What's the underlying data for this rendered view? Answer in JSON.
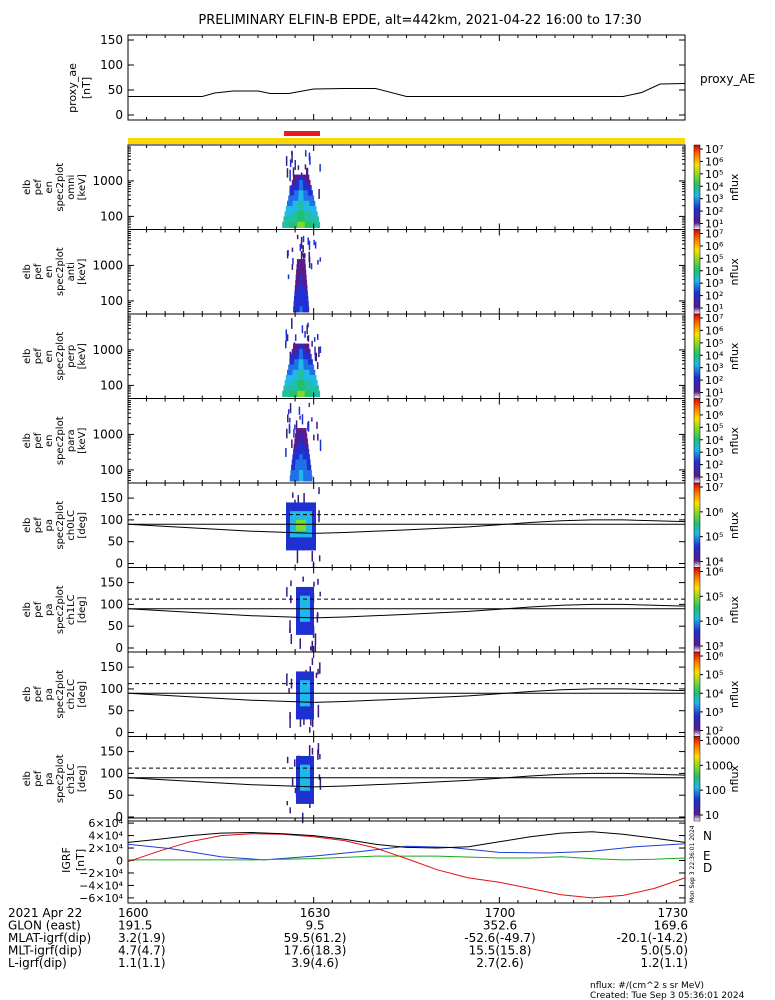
{
  "title": "PRELIMINARY ELFIN-B EPDE, alt=442km, 2021-04-22 16:00 to 17:30",
  "time_ticks": [
    "1600",
    "1630",
    "1700",
    "1730"
  ],
  "colors": {
    "bar_yellow": "#ffd700",
    "bar_red": "#e61c1c",
    "N": "#1f3bd6",
    "E": "#1aa81a",
    "D": "#e01010"
  },
  "footer": {
    "rows": [
      {
        "label": "2021 Apr 22",
        "values": [
          "1600",
          "1630",
          "1700",
          "1730"
        ]
      },
      {
        "label": "GLON (east)",
        "values": [
          "191.5",
          "9.5",
          "352.6",
          "169.6"
        ]
      },
      {
        "label": "MLAT-igrf(dip)",
        "values": [
          "3.2(1.9)",
          "59.5(61.2)",
          "-52.6(-49.7)",
          "-20.1(-14.2)"
        ]
      },
      {
        "label": "MLT-igrf(dip)",
        "values": [
          "4.7(4.7)",
          "17.6(18.3)",
          "15.5(15.8)",
          "5.0(5.0)"
        ]
      },
      {
        "label": "L-igrf(dip)",
        "values": [
          "1.1(1.1)",
          "3.9(4.6)",
          "2.7(2.6)",
          "1.2(1.1)"
        ]
      }
    ],
    "units_note": "nflux: #/(cm^2 s sr MeV)",
    "created": "Created: Tue Sep  3 05:36:01 2024",
    "vertical_stamp": "Mon Sep  3 22:36:01 2024"
  },
  "chart_data": [
    {
      "type": "line",
      "panel": "proxy_ae",
      "ylabel": [
        "proxy_ae",
        "[nT]"
      ],
      "ylim": [
        0,
        150
      ],
      "yticks": [
        "0",
        "50",
        "100",
        "150"
      ],
      "series": [
        {
          "name": "proxy_AE",
          "x_minutes": [
            0,
            5,
            12,
            14,
            17,
            21,
            23,
            26,
            30,
            35,
            40,
            45,
            60,
            75,
            80,
            83,
            86,
            90
          ],
          "values": [
            37,
            37,
            37,
            44,
            48,
            48,
            43,
            43,
            52,
            53,
            53,
            37,
            37,
            37,
            37,
            45,
            62,
            63
          ]
        }
      ]
    },
    {
      "type": "heatmap",
      "panel": "energy_spectra",
      "panels": [
        {
          "ylabel": [
            "elb",
            "pef",
            "en",
            "spec2plot",
            "omni",
            "[keV]"
          ],
          "yticks": [
            "100",
            "1000"
          ],
          "cbar_ticks": [
            "10¹",
            "10²",
            "10³",
            "10⁴",
            "10⁵",
            "10⁶",
            "10⁷"
          ],
          "cbar_label": "nflux"
        },
        {
          "ylabel": [
            "elb",
            "pef",
            "en",
            "spec2plot",
            "anti",
            "[keV]"
          ],
          "yticks": [
            "100",
            "1000"
          ],
          "cbar_ticks": [
            "10¹",
            "10²",
            "10³",
            "10⁴",
            "10⁵",
            "10⁶",
            "10⁷"
          ],
          "cbar_label": "nflux"
        },
        {
          "ylabel": [
            "elb",
            "pef",
            "en",
            "spec2plot",
            "perp",
            "[keV]"
          ],
          "yticks": [
            "100",
            "1000"
          ],
          "cbar_ticks": [
            "10¹",
            "10²",
            "10³",
            "10⁴",
            "10⁵",
            "10⁶",
            "10⁷"
          ],
          "cbar_label": "nflux"
        },
        {
          "ylabel": [
            "elb",
            "pef",
            "en",
            "spec2plot",
            "para",
            "[keV]"
          ],
          "yticks": [
            "100",
            "1000"
          ],
          "cbar_ticks": [
            "10¹",
            "10²",
            "10³",
            "10⁴",
            "10⁵",
            "10⁶",
            "10⁷"
          ],
          "cbar_label": "nflux"
        }
      ]
    },
    {
      "type": "heatmap",
      "panel": "pitch_angle_spectra",
      "ylim": [
        0,
        180
      ],
      "yticks": [
        "0",
        "50",
        "100",
        "150"
      ],
      "dashed_line_deg": 112,
      "panels": [
        {
          "ylabel": [
            "elb",
            "pef",
            "pa",
            "spec2plot",
            "ch0LC",
            "[deg]"
          ],
          "cbar_ticks": [
            "10⁴",
            "10⁵",
            "10⁶",
            "10⁷"
          ],
          "cbar_label": "nflux"
        },
        {
          "ylabel": [
            "elb",
            "pef",
            "pa",
            "spec2plot",
            "ch1LC",
            "[deg]"
          ],
          "cbar_ticks": [
            "10³",
            "10⁴",
            "10⁵",
            "10⁶"
          ],
          "cbar_label": "nflux"
        },
        {
          "ylabel": [
            "elb",
            "pef",
            "pa",
            "spec2plot",
            "ch2LC",
            "[deg]"
          ],
          "cbar_ticks": [
            "10²",
            "10³",
            "10⁴",
            "10⁵",
            "10⁶"
          ],
          "cbar_label": "nflux"
        },
        {
          "ylabel": [
            "elb",
            "pef",
            "pa",
            "spec2plot",
            "ch3LC",
            "[deg]"
          ],
          "cbar_ticks": [
            "10",
            "100",
            "1000",
            "10000"
          ],
          "cbar_label": "nflux"
        }
      ],
      "loss_cone_curve": {
        "x_minutes": [
          0,
          10,
          20,
          30,
          35,
          45,
          55,
          60,
          65,
          70,
          75,
          80,
          85,
          90
        ],
        "values": [
          90,
          82,
          74,
          69,
          71,
          77,
          84,
          89,
          94,
          98,
          100,
          100,
          98,
          96
        ]
      }
    },
    {
      "type": "line",
      "panel": "igrf_field",
      "ylabel": [
        "IGRF",
        "[nT]"
      ],
      "ylim": [
        -65000,
        65000
      ],
      "yticks": [
        "6×10⁴",
        "4×10⁴",
        "2×10⁴",
        "0",
        "−2×10⁴",
        "−4×10⁴",
        "−6×10⁴"
      ],
      "series": [
        {
          "name": "N",
          "x_minutes": [
            0,
            7,
            15,
            22,
            30,
            38,
            45,
            52,
            60,
            68,
            75,
            82,
            90
          ],
          "values": [
            26000,
            19000,
            6000,
            1000,
            7000,
            15000,
            23000,
            21000,
            13000,
            12000,
            15000,
            22000,
            27000
          ]
        },
        {
          "name": "E",
          "x_minutes": [
            0,
            10,
            20,
            30,
            40,
            50,
            60,
            65,
            70,
            75,
            80,
            85,
            90
          ],
          "values": [
            1000,
            1000,
            1000,
            3000,
            7000,
            7000,
            4000,
            4000,
            6000,
            3000,
            1000,
            2000,
            4000
          ]
        },
        {
          "name": "D",
          "x_minutes": [
            0,
            5,
            10,
            15,
            20,
            25,
            30,
            35,
            40,
            45,
            50,
            55,
            60,
            65,
            70,
            75,
            80,
            85,
            90
          ],
          "values": [
            -2000,
            15000,
            30000,
            40000,
            43000,
            42000,
            38000,
            32000,
            20000,
            3000,
            -15000,
            -28000,
            -35000,
            -45000,
            -55000,
            -60000,
            -56000,
            -45000,
            -28000
          ]
        },
        {
          "name": "",
          "x_minutes": [
            0,
            5,
            10,
            15,
            20,
            25,
            30,
            35,
            40,
            45,
            50,
            55,
            60,
            65,
            70,
            75,
            80,
            85,
            90
          ],
          "values": [
            29000,
            34000,
            40000,
            44000,
            45000,
            43000,
            40000,
            34000,
            26000,
            21000,
            20000,
            22000,
            30000,
            38000,
            44000,
            46000,
            42000,
            36000,
            29000
          ]
        }
      ]
    }
  ]
}
